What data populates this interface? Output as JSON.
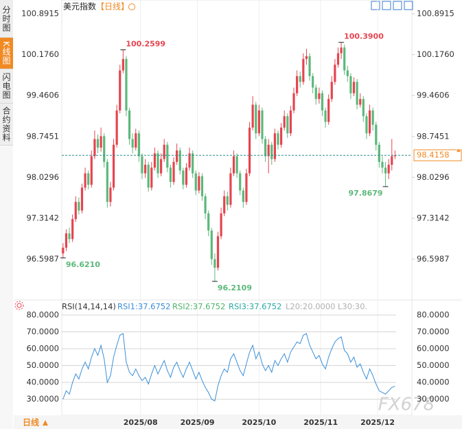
{
  "sidebar_tabs": [
    "分时图",
    "K线图",
    "闪电图",
    "合约资料"
  ],
  "header": {
    "title": "美元指数",
    "period": "【日线】"
  },
  "footer": {
    "period": "日线"
  },
  "watermark": "FX678",
  "chart_data": [
    {
      "type": "candlestick",
      "up_color": "#e5444f",
      "down_color": "#5cb87a",
      "last_color": "#f08a24",
      "xlim": [
        -0.4,
        106
      ],
      "xticks": [
        {
          "value": 24.5,
          "label": "2025/08"
        },
        {
          "value": 42.5,
          "label": "2025/09"
        },
        {
          "value": 62,
          "label": "2025/10"
        },
        {
          "value": 81.5,
          "label": "2025/11"
        },
        {
          "value": 99.5,
          "label": "2025/12"
        }
      ],
      "ylim": [
        95.97,
        101.035
      ],
      "yticks": [
        {
          "value": 96.5987,
          "label": "96.5987"
        },
        {
          "value": 97.3142,
          "label": "97.3142"
        },
        {
          "value": 98.0296,
          "label": "98.0296"
        },
        {
          "value": 98.7451,
          "label": "98.7451"
        },
        {
          "value": 99.4606,
          "label": "99.4606"
        },
        {
          "value": 100.176,
          "label": "100.1760"
        },
        {
          "value": 100.8915,
          "label": "100.8915"
        }
      ],
      "extremes": [
        {
          "value": 100.2599,
          "label": "100.2599"
        },
        {
          "value": 100.39,
          "label": "100.3900"
        },
        {
          "value": 96.621,
          "label": "96.6210"
        },
        {
          "value": 96.2109,
          "label": "96.2109"
        },
        {
          "value": 97.8679,
          "label": "97.8679"
        }
      ],
      "open": [
        96.7,
        96.8,
        97.05,
        96.95,
        97.3,
        97.6,
        97.45,
        97.85,
        98.1,
        97.9,
        98.4,
        98.7,
        98.55,
        98.75,
        98.3,
        97.6,
        97.85,
        98.6,
        99.2,
        99.9,
        100.1,
        99.2,
        98.7,
        98.55,
        98.8,
        98.4,
        98.1,
        98.25,
        97.85,
        98.2,
        98.45,
        98.1,
        98.35,
        98.6,
        98.2,
        97.95,
        98.3,
        98.5,
        98.15,
        97.9,
        98.2,
        98.45,
        98.1,
        97.8,
        98.05,
        97.7,
        97.4,
        97.1,
        96.6,
        96.45,
        97.0,
        97.4,
        97.7,
        97.55,
        98.1,
        98.4,
        98.1,
        97.8,
        97.6,
        98.1,
        98.9,
        99.3,
        98.8,
        99.2,
        98.7,
        98.4,
        98.6,
        98.35,
        98.8,
        98.6,
        98.9,
        99.1,
        98.8,
        99.2,
        99.5,
        99.8,
        99.7,
        100.1,
        100.15,
        99.8,
        99.6,
        99.4,
        99.5,
        99.2,
        99.0,
        99.4,
        99.7,
        100.0,
        100.2,
        100.3,
        99.9,
        99.8,
        99.5,
        99.7,
        99.3,
        99.4,
        99.1,
        98.8,
        99.2,
        98.95,
        98.6,
        98.3,
        98.2,
        98.1,
        98.25,
        98.4
      ],
      "high": [
        96.88,
        97.12,
        97.15,
        97.38,
        97.7,
        97.68,
        97.92,
        98.2,
        98.15,
        98.5,
        98.85,
        98.78,
        98.9,
        98.8,
        98.35,
        97.95,
        98.7,
        99.3,
        100.0,
        100.2599,
        100.15,
        99.25,
        98.8,
        98.88,
        98.85,
        98.45,
        98.35,
        98.3,
        98.3,
        98.55,
        98.5,
        98.45,
        98.7,
        98.65,
        98.25,
        98.38,
        98.62,
        98.55,
        98.2,
        98.28,
        98.55,
        98.5,
        98.15,
        98.12,
        98.1,
        97.75,
        97.45,
        97.15,
        96.7,
        97.08,
        97.5,
        97.8,
        97.78,
        98.2,
        98.5,
        98.45,
        98.15,
        97.85,
        98.18,
        99.0,
        99.45,
        99.35,
        99.3,
        99.25,
        98.75,
        98.7,
        98.65,
        98.88,
        98.85,
        98.98,
        99.2,
        99.15,
        99.28,
        99.6,
        99.9,
        99.88,
        100.2,
        100.28,
        100.2,
        99.85,
        99.65,
        99.6,
        99.55,
        99.25,
        99.48,
        99.8,
        100.1,
        100.3,
        100.39,
        100.35,
        99.98,
        99.85,
        99.78,
        99.75,
        99.5,
        99.45,
        99.15,
        99.3,
        99.25,
        99.0,
        98.65,
        98.4,
        98.3,
        98.35,
        98.7,
        98.5
      ],
      "low": [
        96.621,
        96.74,
        96.88,
        96.9,
        97.25,
        97.38,
        97.4,
        97.8,
        97.82,
        97.85,
        98.35,
        98.45,
        98.48,
        98.2,
        97.5,
        97.52,
        97.8,
        98.55,
        99.15,
        99.85,
        99.1,
        98.6,
        98.45,
        98.5,
        98.3,
        98.0,
        98.02,
        97.78,
        97.8,
        98.15,
        98.02,
        98.05,
        98.3,
        98.12,
        97.85,
        97.9,
        98.25,
        98.08,
        97.82,
        97.85,
        98.15,
        98.02,
        97.72,
        97.75,
        97.62,
        97.3,
        97.0,
        96.5,
        96.2109,
        96.4,
        96.95,
        97.35,
        97.45,
        97.5,
        98.05,
        98.02,
        97.72,
        97.5,
        97.55,
        98.05,
        98.85,
        98.7,
        98.75,
        98.62,
        98.3,
        98.1,
        98.25,
        98.3,
        98.52,
        98.55,
        98.85,
        98.72,
        98.75,
        99.15,
        99.45,
        99.6,
        99.65,
        100.0,
        99.72,
        99.5,
        99.3,
        99.32,
        99.1,
        98.9,
        98.95,
        99.35,
        99.65,
        99.95,
        100.1,
        99.82,
        99.7,
        99.4,
        99.45,
        99.22,
        99.25,
        99.0,
        98.7,
        98.75,
        98.85,
        98.5,
        98.2,
        98.1,
        97.8679,
        98.0,
        98.15,
        98.35
      ],
      "close": [
        96.8,
        97.05,
        96.95,
        97.3,
        97.6,
        97.45,
        97.85,
        98.1,
        97.9,
        98.4,
        98.7,
        98.55,
        98.75,
        98.3,
        97.6,
        97.85,
        98.6,
        99.2,
        99.9,
        100.1,
        99.2,
        98.7,
        98.55,
        98.8,
        98.4,
        98.1,
        98.25,
        97.85,
        98.2,
        98.45,
        98.1,
        98.35,
        98.6,
        98.2,
        97.95,
        98.3,
        98.5,
        98.15,
        97.9,
        98.2,
        98.45,
        98.1,
        97.8,
        98.05,
        97.7,
        97.4,
        97.1,
        96.6,
        96.45,
        97.0,
        97.4,
        97.7,
        97.55,
        98.1,
        98.4,
        98.1,
        97.8,
        97.6,
        98.1,
        98.9,
        99.3,
        98.8,
        99.2,
        98.7,
        98.4,
        98.6,
        98.35,
        98.8,
        98.6,
        98.9,
        99.1,
        98.8,
        99.2,
        99.5,
        99.8,
        99.7,
        100.1,
        100.15,
        99.8,
        99.6,
        99.4,
        99.5,
        99.2,
        99.0,
        99.4,
        99.7,
        100.0,
        100.2,
        100.3,
        99.9,
        99.8,
        99.5,
        99.7,
        99.3,
        99.4,
        99.1,
        98.8,
        99.2,
        98.95,
        98.6,
        98.3,
        98.2,
        98.1,
        98.25,
        98.4,
        98.4158
      ]
    },
    {
      "type": "line",
      "ylim": [
        22.5,
        83
      ],
      "yticks": [
        {
          "value": 30,
          "label": "30.0000"
        },
        {
          "value": 40,
          "label": "40.0000"
        },
        {
          "value": 50,
          "label": "50.0000"
        },
        {
          "value": 60,
          "label": "60.0000"
        },
        {
          "value": 70,
          "label": "70.0000"
        },
        {
          "value": 80,
          "label": "80.0000"
        }
      ],
      "legend": [
        {
          "text": "RSI(14,14,14)",
          "color": "#333333"
        },
        {
          "text": "RSI1:37.6752",
          "color": "#3a8fd9"
        },
        {
          "text": "RSI2:37.6752",
          "color": "#4fb36a"
        },
        {
          "text": "RSI3:37.6752",
          "color": "#2aa9a5"
        },
        {
          "text": "L20:20.0000",
          "color": "#b0b0b0"
        },
        {
          "text": "L30:30.",
          "color": "#b0b0b0"
        }
      ],
      "series": [
        {
          "name": "RSI1",
          "color": "#3a8fd9",
          "values": [
            30,
            35,
            33,
            40,
            45,
            42,
            48,
            52,
            48,
            55,
            60,
            56,
            62,
            54,
            40,
            44,
            55,
            62,
            68,
            69,
            52,
            46,
            44,
            48,
            44,
            41,
            43,
            39,
            45,
            50,
            45,
            49,
            53,
            47,
            43,
            49,
            52,
            47,
            43,
            48,
            52,
            47,
            42,
            46,
            41,
            37,
            34,
            30,
            29,
            38,
            44,
            48,
            46,
            54,
            57,
            52,
            47,
            44,
            51,
            58,
            62,
            54,
            58,
            51,
            47,
            50,
            46,
            53,
            50,
            54,
            57,
            52,
            58,
            61,
            64,
            63,
            68,
            69,
            62,
            58,
            54,
            56,
            51,
            48,
            55,
            60,
            64,
            66,
            67,
            59,
            57,
            52,
            55,
            49,
            51,
            46,
            42,
            48,
            44,
            39,
            35,
            34,
            33,
            35,
            37,
            37.6752
          ]
        }
      ]
    }
  ]
}
